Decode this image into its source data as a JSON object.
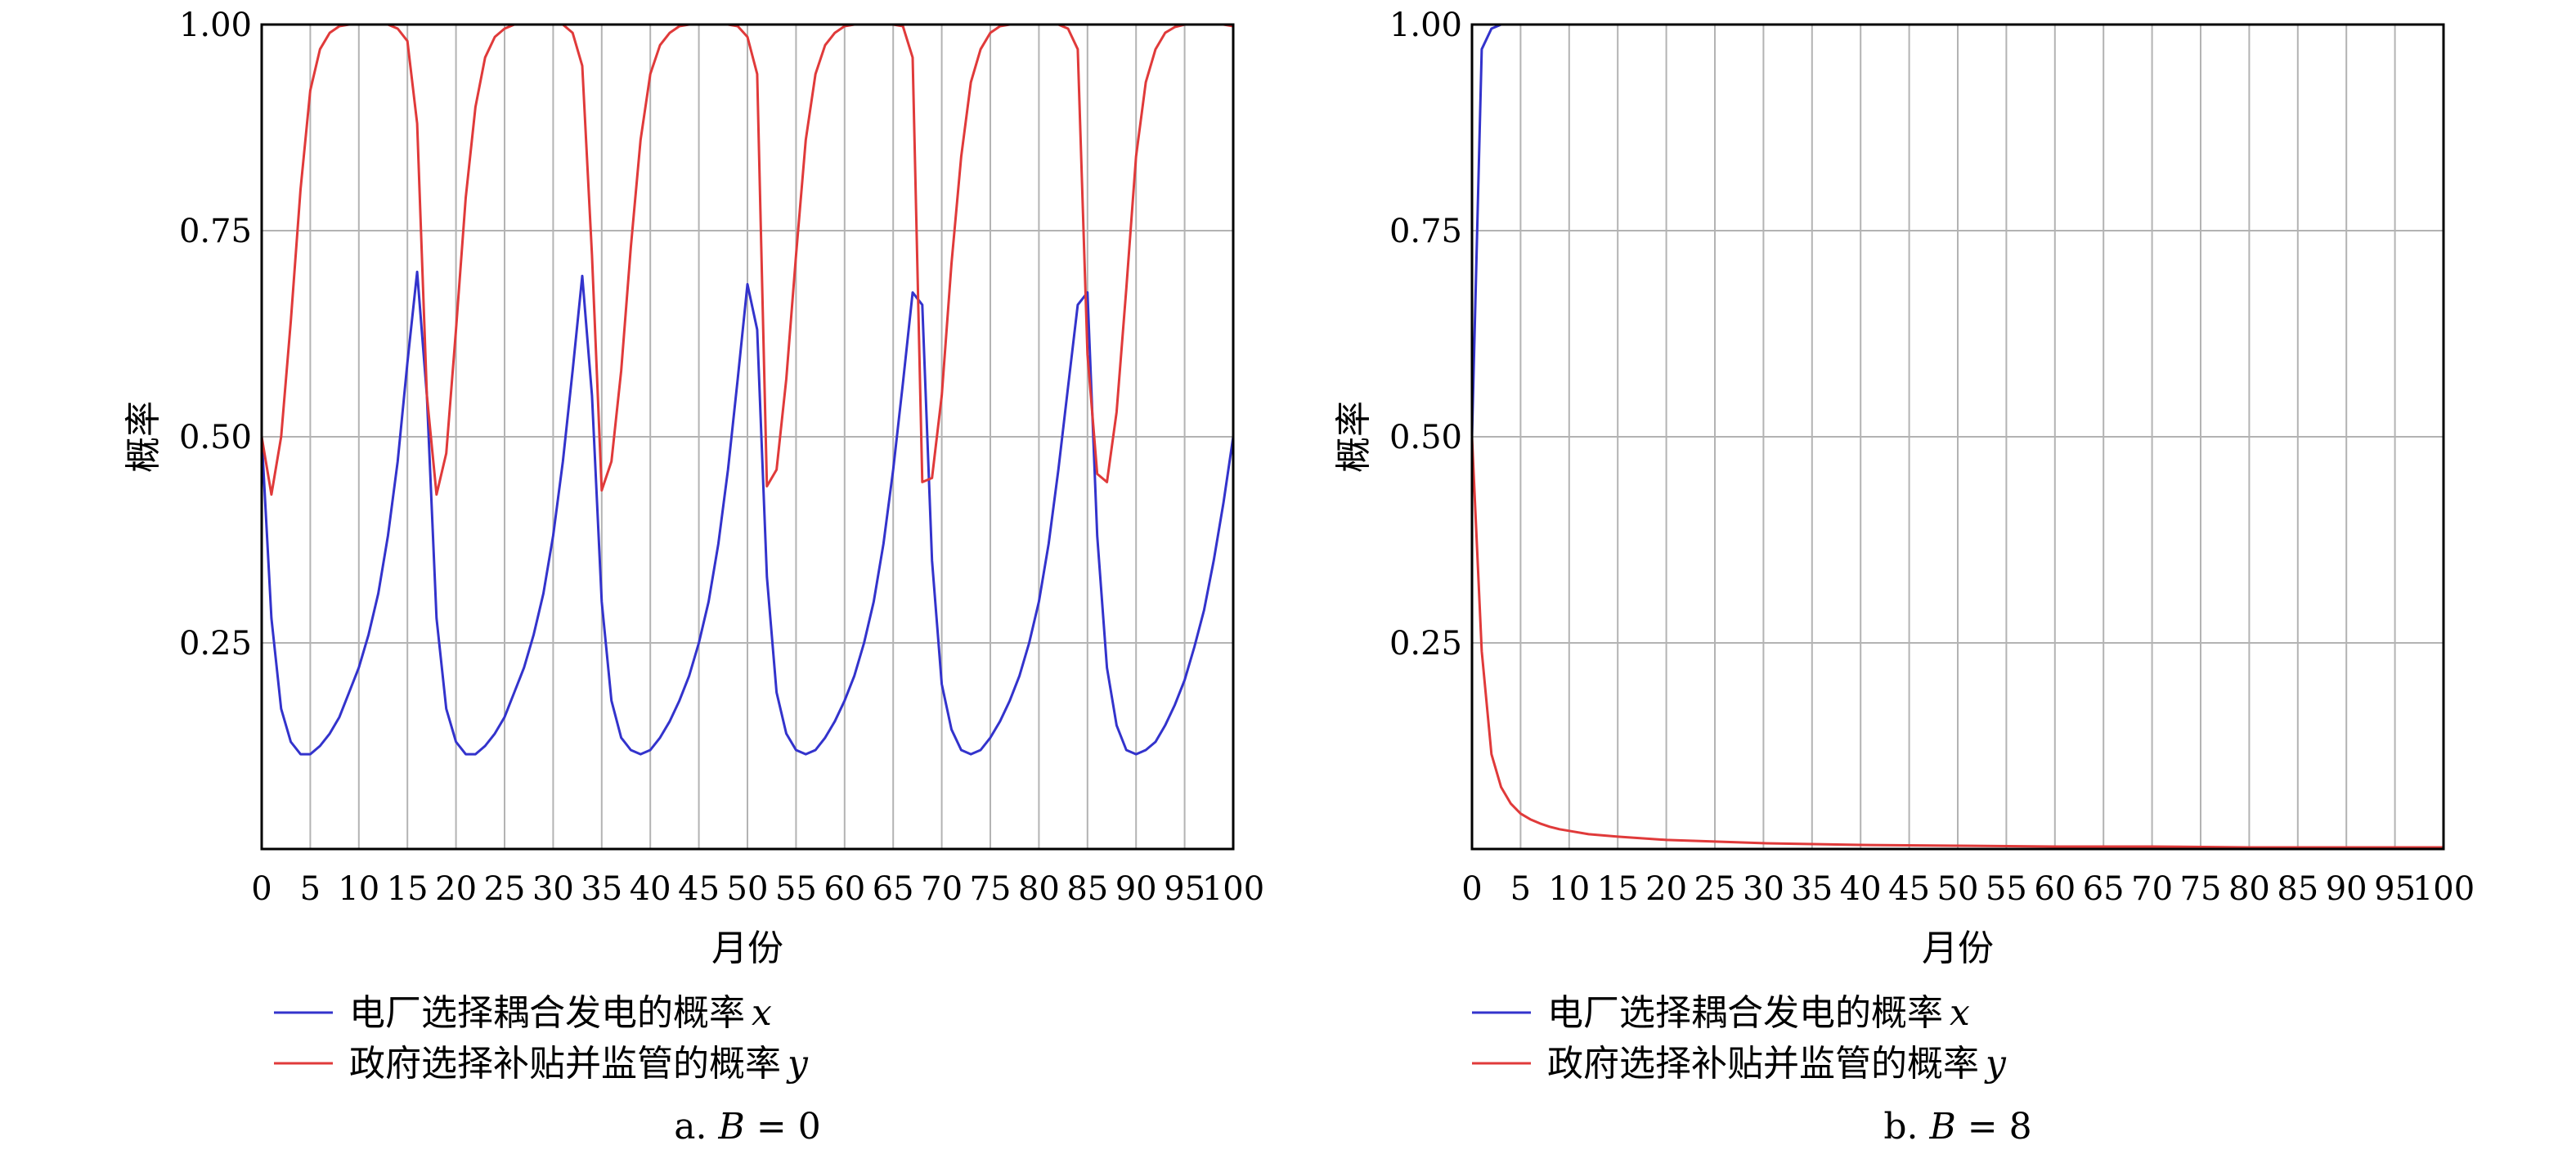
{
  "chart_data": [
    {
      "type": "line",
      "caption": {
        "prefix": "a. ",
        "var": "B",
        "suffix": " = 0"
      },
      "xlabel": "月份",
      "ylabel": "概率",
      "xlim": [
        0,
        100
      ],
      "ylim": [
        0,
        1
      ],
      "xticks": [
        "0",
        "5",
        "10",
        "15",
        "20",
        "25",
        "30",
        "35",
        "40",
        "45",
        "50",
        "55",
        "60",
        "65",
        "70",
        "75",
        "80",
        "85",
        "90",
        "95",
        "100"
      ],
      "yticks": [
        "0.25",
        "0.50",
        "0.75",
        "1.00"
      ],
      "grid": true,
      "legend_position": "bottom-left",
      "series": [
        {
          "name": "电厂选择耦合发电的概率",
          "name_var": "x",
          "color": "#3333cc",
          "points": [
            [
              0,
              0.5
            ],
            [
              1,
              0.28
            ],
            [
              2,
              0.17
            ],
            [
              3,
              0.13
            ],
            [
              4,
              0.115
            ],
            [
              5,
              0.115
            ],
            [
              6,
              0.125
            ],
            [
              7,
              0.14
            ],
            [
              8,
              0.16
            ],
            [
              9,
              0.19
            ],
            [
              10,
              0.22
            ],
            [
              11,
              0.26
            ],
            [
              12,
              0.31
            ],
            [
              13,
              0.38
            ],
            [
              14,
              0.47
            ],
            [
              15,
              0.59
            ],
            [
              16,
              0.7
            ],
            [
              17,
              0.55
            ],
            [
              18,
              0.28
            ],
            [
              19,
              0.17
            ],
            [
              20,
              0.13
            ],
            [
              21,
              0.115
            ],
            [
              22,
              0.115
            ],
            [
              23,
              0.125
            ],
            [
              24,
              0.14
            ],
            [
              25,
              0.16
            ],
            [
              26,
              0.19
            ],
            [
              27,
              0.22
            ],
            [
              28,
              0.26
            ],
            [
              29,
              0.31
            ],
            [
              30,
              0.38
            ],
            [
              31,
              0.47
            ],
            [
              32,
              0.58
            ],
            [
              33,
              0.695
            ],
            [
              34,
              0.55
            ],
            [
              35,
              0.3
            ],
            [
              36,
              0.18
            ],
            [
              37,
              0.135
            ],
            [
              38,
              0.12
            ],
            [
              39,
              0.115
            ],
            [
              40,
              0.12
            ],
            [
              41,
              0.135
            ],
            [
              42,
              0.155
            ],
            [
              43,
              0.18
            ],
            [
              44,
              0.21
            ],
            [
              45,
              0.25
            ],
            [
              46,
              0.3
            ],
            [
              47,
              0.37
            ],
            [
              48,
              0.46
            ],
            [
              49,
              0.57
            ],
            [
              50,
              0.685
            ],
            [
              51,
              0.63
            ],
            [
              52,
              0.33
            ],
            [
              53,
              0.19
            ],
            [
              54,
              0.14
            ],
            [
              55,
              0.12
            ],
            [
              56,
              0.115
            ],
            [
              57,
              0.12
            ],
            [
              58,
              0.135
            ],
            [
              59,
              0.155
            ],
            [
              60,
              0.18
            ],
            [
              61,
              0.21
            ],
            [
              62,
              0.25
            ],
            [
              63,
              0.3
            ],
            [
              64,
              0.37
            ],
            [
              65,
              0.46
            ],
            [
              66,
              0.565
            ],
            [
              67,
              0.675
            ],
            [
              68,
              0.66
            ],
            [
              69,
              0.35
            ],
            [
              70,
              0.2
            ],
            [
              71,
              0.145
            ],
            [
              72,
              0.12
            ],
            [
              73,
              0.115
            ],
            [
              74,
              0.12
            ],
            [
              75,
              0.135
            ],
            [
              76,
              0.155
            ],
            [
              77,
              0.18
            ],
            [
              78,
              0.21
            ],
            [
              79,
              0.25
            ],
            [
              80,
              0.3
            ],
            [
              81,
              0.37
            ],
            [
              82,
              0.46
            ],
            [
              83,
              0.56
            ],
            [
              84,
              0.66
            ],
            [
              85,
              0.675
            ],
            [
              86,
              0.38
            ],
            [
              87,
              0.22
            ],
            [
              88,
              0.15
            ],
            [
              89,
              0.12
            ],
            [
              90,
              0.115
            ],
            [
              91,
              0.12
            ],
            [
              92,
              0.13
            ],
            [
              93,
              0.15
            ],
            [
              94,
              0.175
            ],
            [
              95,
              0.205
            ],
            [
              96,
              0.245
            ],
            [
              97,
              0.29
            ],
            [
              98,
              0.35
            ],
            [
              99,
              0.42
            ],
            [
              100,
              0.5
            ]
          ]
        },
        {
          "name": "政府选择补贴并监管的概率",
          "name_var": "y",
          "color": "#e03a3a",
          "points": [
            [
              0,
              0.5
            ],
            [
              1,
              0.43
            ],
            [
              2,
              0.5
            ],
            [
              3,
              0.64
            ],
            [
              4,
              0.8
            ],
            [
              5,
              0.92
            ],
            [
              6,
              0.97
            ],
            [
              7,
              0.99
            ],
            [
              8,
              0.998
            ],
            [
              9,
              1.0
            ],
            [
              10,
              1.0
            ],
            [
              11,
              1.0
            ],
            [
              12,
              1.0
            ],
            [
              13,
              1.0
            ],
            [
              14,
              0.995
            ],
            [
              15,
              0.98
            ],
            [
              16,
              0.88
            ],
            [
              17,
              0.55
            ],
            [
              18,
              0.43
            ],
            [
              19,
              0.48
            ],
            [
              20,
              0.63
            ],
            [
              21,
              0.79
            ],
            [
              22,
              0.9
            ],
            [
              23,
              0.96
            ],
            [
              24,
              0.985
            ],
            [
              25,
              0.995
            ],
            [
              26,
              1.0
            ],
            [
              27,
              1.0
            ],
            [
              28,
              1.0
            ],
            [
              29,
              1.0
            ],
            [
              30,
              1.0
            ],
            [
              31,
              1.0
            ],
            [
              32,
              0.99
            ],
            [
              33,
              0.95
            ],
            [
              34,
              0.72
            ],
            [
              35,
              0.435
            ],
            [
              36,
              0.47
            ],
            [
              37,
              0.58
            ],
            [
              38,
              0.73
            ],
            [
              39,
              0.86
            ],
            [
              40,
              0.94
            ],
            [
              41,
              0.975
            ],
            [
              42,
              0.99
            ],
            [
              43,
              0.998
            ],
            [
              44,
              1.0
            ],
            [
              45,
              1.0
            ],
            [
              46,
              1.0
            ],
            [
              47,
              1.0
            ],
            [
              48,
              1.0
            ],
            [
              49,
              0.998
            ],
            [
              50,
              0.985
            ],
            [
              51,
              0.94
            ],
            [
              52,
              0.44
            ],
            [
              53,
              0.46
            ],
            [
              54,
              0.57
            ],
            [
              55,
              0.72
            ],
            [
              56,
              0.86
            ],
            [
              57,
              0.94
            ],
            [
              58,
              0.975
            ],
            [
              59,
              0.99
            ],
            [
              60,
              0.998
            ],
            [
              61,
              1.0
            ],
            [
              62,
              1.0
            ],
            [
              63,
              1.0
            ],
            [
              64,
              1.0
            ],
            [
              65,
              1.0
            ],
            [
              66,
              0.998
            ],
            [
              67,
              0.96
            ],
            [
              68,
              0.445
            ],
            [
              69,
              0.45
            ],
            [
              70,
              0.55
            ],
            [
              71,
              0.71
            ],
            [
              72,
              0.84
            ],
            [
              73,
              0.93
            ],
            [
              74,
              0.97
            ],
            [
              75,
              0.99
            ],
            [
              76,
              0.998
            ],
            [
              77,
              1.0
            ],
            [
              78,
              1.0
            ],
            [
              79,
              1.0
            ],
            [
              80,
              1.0
            ],
            [
              81,
              1.0
            ],
            [
              82,
              1.0
            ],
            [
              83,
              0.995
            ],
            [
              84,
              0.97
            ],
            [
              85,
              0.6
            ],
            [
              86,
              0.455
            ],
            [
              87,
              0.445
            ],
            [
              88,
              0.53
            ],
            [
              89,
              0.68
            ],
            [
              90,
              0.84
            ],
            [
              91,
              0.93
            ],
            [
              92,
              0.97
            ],
            [
              93,
              0.99
            ],
            [
              94,
              0.997
            ],
            [
              95,
              1.0
            ],
            [
              96,
              1.0
            ],
            [
              97,
              1.0
            ],
            [
              98,
              1.0
            ],
            [
              99,
              1.0
            ],
            [
              100,
              0.998
            ]
          ]
        }
      ]
    },
    {
      "type": "line",
      "caption": {
        "prefix": "b. ",
        "var": "B",
        "suffix": " = 8"
      },
      "xlabel": "月份",
      "ylabel": "概率",
      "xlim": [
        0,
        100
      ],
      "ylim": [
        0,
        1
      ],
      "xticks": [
        "0",
        "5",
        "10",
        "15",
        "20",
        "25",
        "30",
        "35",
        "40",
        "45",
        "50",
        "55",
        "60",
        "65",
        "70",
        "75",
        "80",
        "85",
        "90",
        "95",
        "100"
      ],
      "yticks": [
        "0.25",
        "0.50",
        "0.75",
        "1.00"
      ],
      "grid": true,
      "legend_position": "bottom-left",
      "series": [
        {
          "name": "电厂选择耦合发电的概率",
          "name_var": "x",
          "color": "#3333cc",
          "points": [
            [
              0,
              0.5
            ],
            [
              1,
              0.97
            ],
            [
              2,
              0.995
            ],
            [
              3,
              1.0
            ],
            [
              4,
              1.0
            ],
            [
              5,
              1.0
            ],
            [
              10,
              1.0
            ],
            [
              20,
              1.0
            ],
            [
              30,
              1.0
            ],
            [
              40,
              1.0
            ],
            [
              50,
              1.0
            ],
            [
              60,
              1.0
            ],
            [
              70,
              1.0
            ],
            [
              80,
              1.0
            ],
            [
              90,
              1.0
            ],
            [
              100,
              1.0
            ]
          ]
        },
        {
          "name": "政府选择补贴并监管的概率",
          "name_var": "y",
          "color": "#e03a3a",
          "points": [
            [
              0,
              0.5
            ],
            [
              1,
              0.24
            ],
            [
              2,
              0.115
            ],
            [
              3,
              0.075
            ],
            [
              4,
              0.055
            ],
            [
              5,
              0.043
            ],
            [
              6,
              0.036
            ],
            [
              7,
              0.031
            ],
            [
              8,
              0.027
            ],
            [
              9,
              0.024
            ],
            [
              10,
              0.022
            ],
            [
              12,
              0.018
            ],
            [
              15,
              0.015
            ],
            [
              20,
              0.011
            ],
            [
              25,
              0.009
            ],
            [
              30,
              0.007
            ],
            [
              40,
              0.005
            ],
            [
              50,
              0.004
            ],
            [
              60,
              0.003
            ],
            [
              70,
              0.003
            ],
            [
              80,
              0.002
            ],
            [
              90,
              0.002
            ],
            [
              100,
              0.002
            ]
          ]
        }
      ]
    }
  ]
}
